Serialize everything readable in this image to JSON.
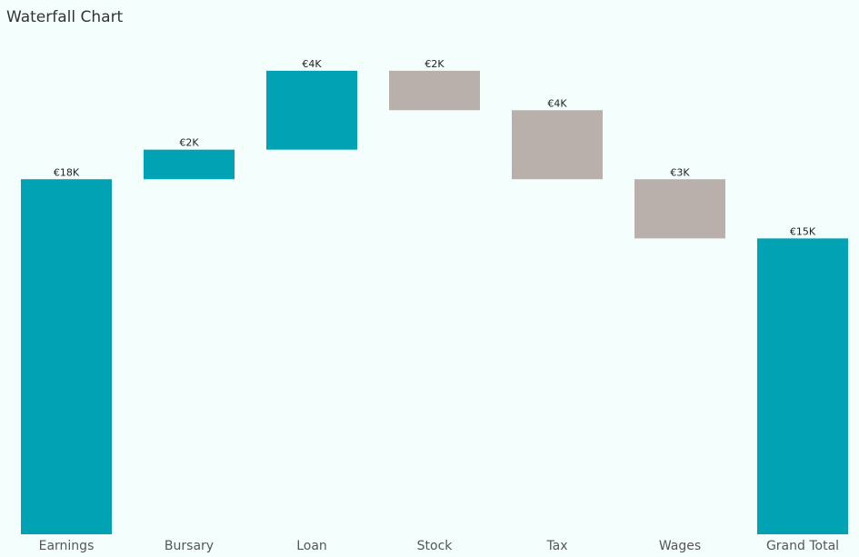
{
  "chart_data": {
    "type": "waterfall",
    "title": "Waterfall Chart",
    "categories": [
      "Earnings",
      "Bursary",
      "Loan",
      "Stock",
      "Tax",
      "Wages"
    ],
    "values": [
      18000,
      1500,
      4000,
      -2000,
      -3500,
      -3000
    ],
    "value_labels": [
      "€18K",
      "€2K",
      "€4K",
      "€2K",
      "€4K",
      "€3K"
    ],
    "total": {
      "category": "Grand Total",
      "value": 15000,
      "value_label": "€15K"
    },
    "increase_color": "#00a2b4",
    "decrease_color": "#bab0ab",
    "total_color": "#00a2b4",
    "ylim": [
      0,
      24000
    ]
  }
}
